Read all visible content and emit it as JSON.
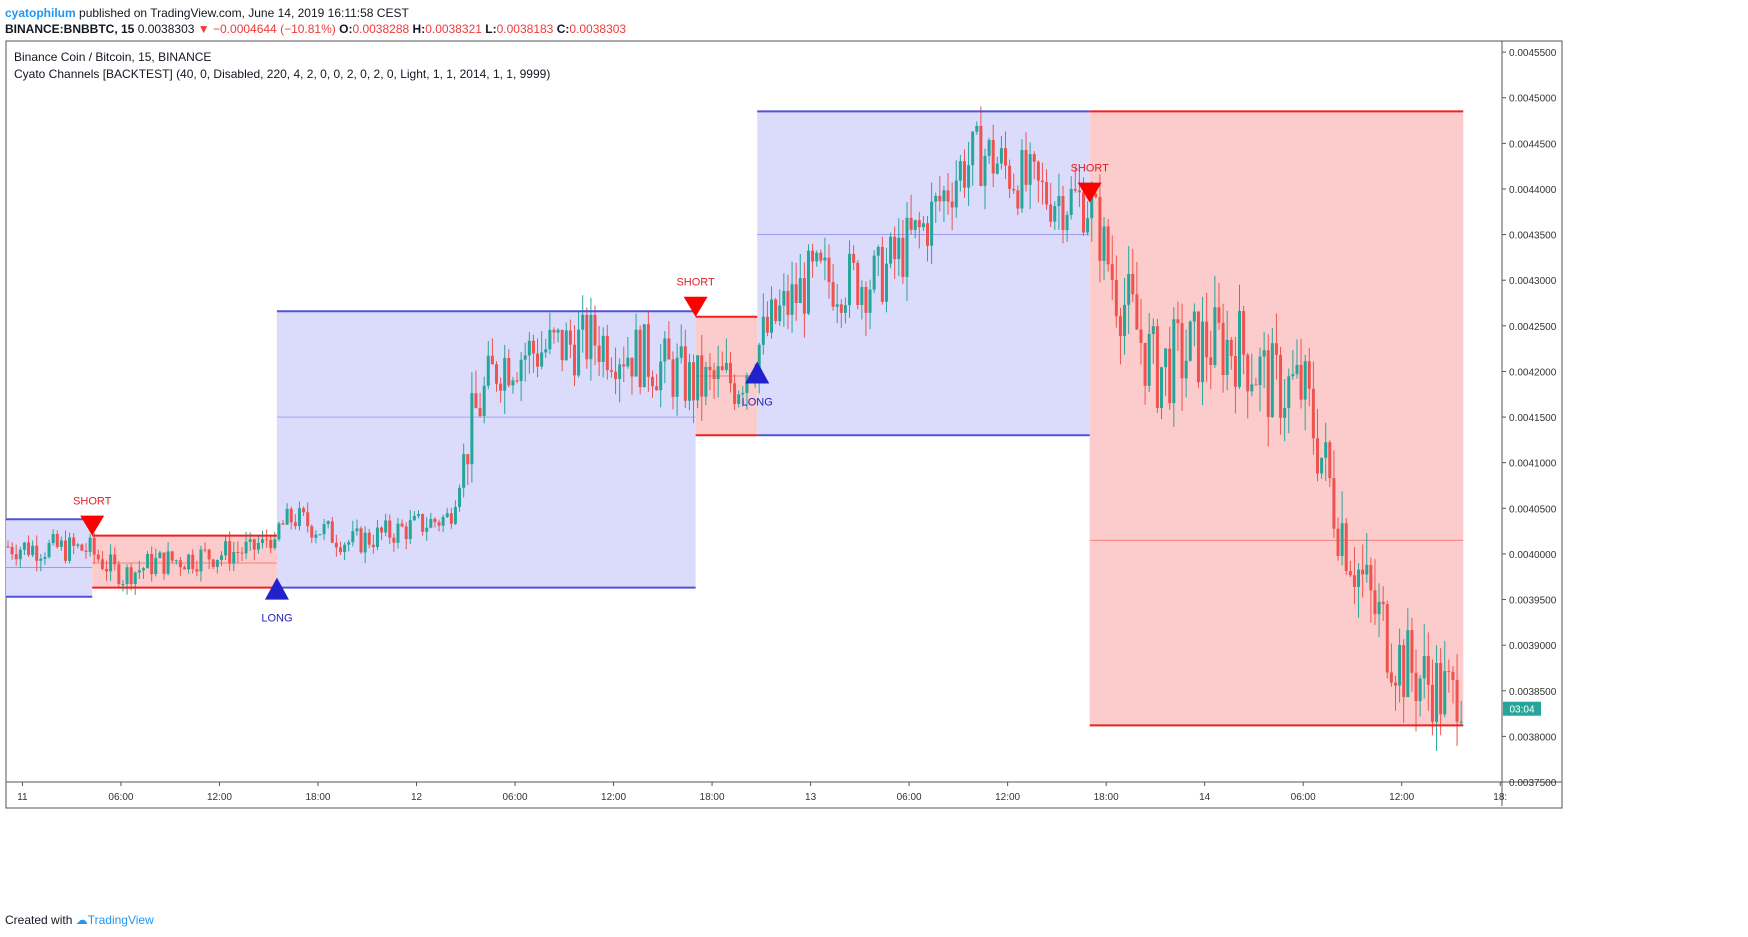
{
  "header": {
    "author": "cyatophilum",
    "published": "published on TradingView.com, June 14, 2019 16:11:58 CEST",
    "symbol": "BINANCE:BNBBTC, 15",
    "last": "0.0038303",
    "change": "−0.0004644 (−10.81%)",
    "open_label": "O:",
    "open": "0.0038288",
    "high_label": "H:",
    "high": "0.0038321",
    "low_label": "L:",
    "low": "0.0038183",
    "close_label": "C:",
    "close": "0.0038303"
  },
  "legend": {
    "title": "Binance Coin / Bitcoin, 15, BINANCE",
    "indicator": "Cyato Channels [BACKTEST] (40, 0, Disabled, 220, 4, 2, 0, 0, 2, 0, 2, 0, Light, 1, 1, 2014, 1, 1, 9999)"
  },
  "footer": {
    "created_with": "Created with",
    "brand": "TradingView"
  },
  "colors": {
    "long_line": "#5252d8",
    "long_fill": "#d9d9fb",
    "short_line": "#f21f1f",
    "short_fill": "#fcc9c9",
    "up": "#26a69a",
    "down": "#ef5350",
    "price_badge": "#26a69a",
    "signal_short": "#ff0000",
    "signal_long": "#2222cc"
  },
  "chart_data": {
    "type": "candlestick-channel",
    "symbol": "BNBBTC",
    "ylim": [
      0.00375,
      0.00456
    ],
    "y_ticks": [
      "0.0045500",
      "0.0045000",
      "0.0044500",
      "0.0044000",
      "0.0043500",
      "0.0043000",
      "0.0042500",
      "0.0042000",
      "0.0041500",
      "0.0041000",
      "0.0040500",
      "0.0040000",
      "0.0039500",
      "0.0039000",
      "0.0038500",
      "0.0038000",
      "0.0037500"
    ],
    "x_ticks": [
      "11",
      "06:00",
      "12:00",
      "18:00",
      "12",
      "06:00",
      "12:00",
      "18:00",
      "13",
      "06:00",
      "12:00",
      "18:00",
      "14",
      "06:00",
      "12:00",
      "18:"
    ],
    "price_badge": "03:04",
    "channel_segments": [
      {
        "side": "long",
        "start": "Jun 10 23:00",
        "end": "Jun 11 04:15",
        "upper": 0.004038,
        "lower": 0.003953,
        "mid": 0.003985
      },
      {
        "side": "short",
        "start": "Jun 11 04:15",
        "end": "Jun 11 15:30",
        "upper": 0.00402,
        "lower": 0.003963,
        "mid": 0.00399
      },
      {
        "side": "long",
        "start": "Jun 11 15:30",
        "end": "Jun 12 17:00",
        "upper": 0.004266,
        "lower": 0.003963,
        "mid": 0.00415
      },
      {
        "side": "short",
        "start": "Jun 12 17:00",
        "end": "Jun 12 20:45",
        "upper": 0.00426,
        "lower": 0.00413,
        "mid": 0.004195
      },
      {
        "side": "long",
        "start": "Jun 12 20:45",
        "end": "Jun 13 17:00",
        "upper": 0.004485,
        "lower": 0.00413,
        "mid": 0.00435
      },
      {
        "side": "short",
        "start": "Jun 13 17:00",
        "end": "Jun 14 15:45",
        "upper": 0.004485,
        "lower": 0.003812,
        "mid": 0.004015
      }
    ],
    "signals": [
      {
        "type": "SHORT",
        "time": "Jun 11 04:15",
        "price": 0.00402
      },
      {
        "type": "LONG",
        "time": "Jun 11 15:30",
        "price": 0.003963
      },
      {
        "type": "SHORT",
        "time": "Jun 12 17:00",
        "price": 0.00426
      },
      {
        "type": "LONG",
        "time": "Jun 12 20:45",
        "price": 0.0042
      },
      {
        "type": "SHORT",
        "time": "Jun 13 17:00",
        "price": 0.004385
      }
    ],
    "ohlc": {
      "open": 0.0038288,
      "high": 0.0038321,
      "low": 0.0038183,
      "close": 0.0038303,
      "change": -0.0004644,
      "change_pct": -10.81
    }
  }
}
